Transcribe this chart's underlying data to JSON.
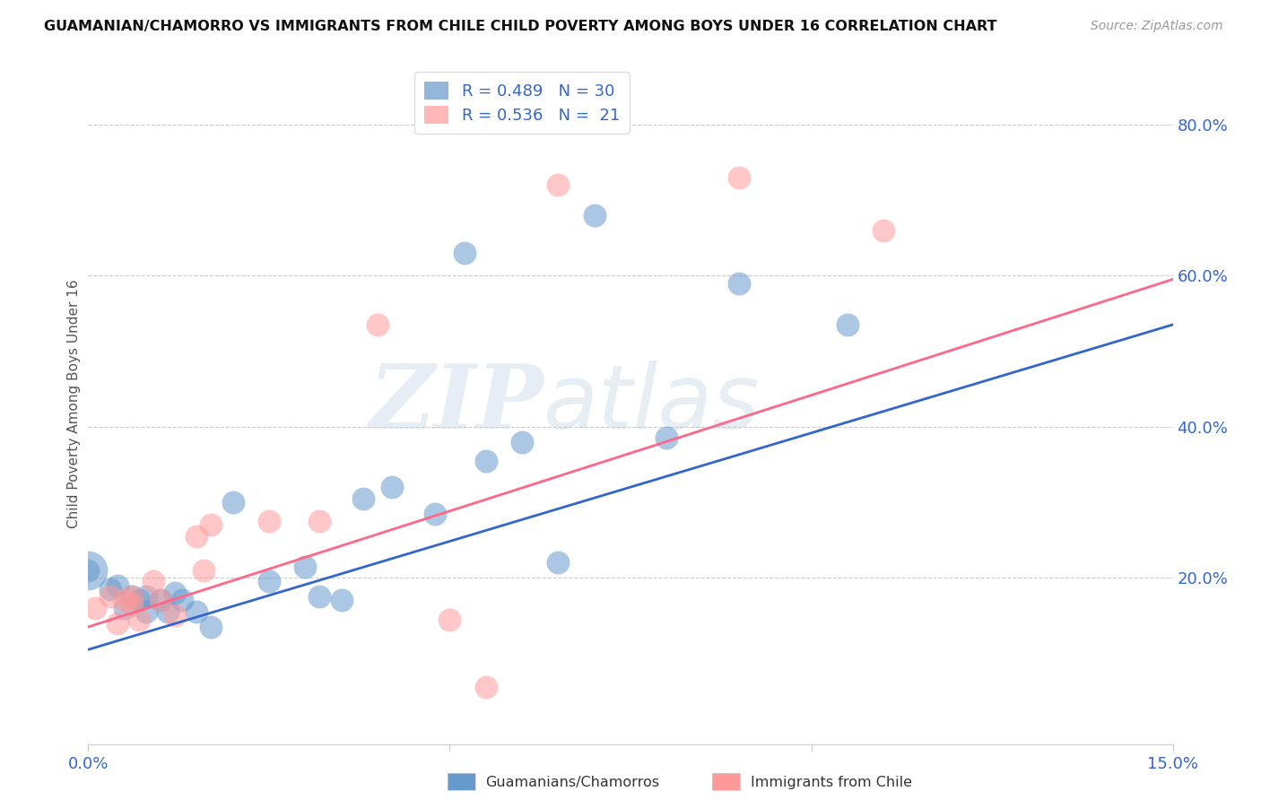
{
  "title": "GUAMANIAN/CHAMORRO VS IMMIGRANTS FROM CHILE CHILD POVERTY AMONG BOYS UNDER 16 CORRELATION CHART",
  "source": "Source: ZipAtlas.com",
  "xlim": [
    0.0,
    0.15
  ],
  "ylim": [
    -0.02,
    0.88
  ],
  "blue_R": 0.489,
  "blue_N": 30,
  "pink_R": 0.536,
  "pink_N": 21,
  "blue_color": "#6699CC",
  "pink_color": "#FF9999",
  "blue_line_color": "#3366CC",
  "pink_line_color": "#FF6688",
  "background_color": "#FFFFFF",
  "blue_scatter_x": [
    0.0,
    0.003,
    0.004,
    0.005,
    0.006,
    0.007,
    0.008,
    0.008,
    0.01,
    0.011,
    0.012,
    0.013,
    0.015,
    0.017,
    0.02,
    0.025,
    0.03,
    0.032,
    0.035,
    0.038,
    0.042,
    0.048,
    0.052,
    0.055,
    0.06,
    0.065,
    0.07,
    0.08,
    0.09,
    0.105
  ],
  "blue_scatter_y": [
    0.21,
    0.185,
    0.19,
    0.16,
    0.175,
    0.17,
    0.175,
    0.155,
    0.17,
    0.155,
    0.18,
    0.17,
    0.155,
    0.135,
    0.3,
    0.195,
    0.215,
    0.175,
    0.17,
    0.305,
    0.32,
    0.285,
    0.63,
    0.355,
    0.38,
    0.22,
    0.68,
    0.385,
    0.59,
    0.535
  ],
  "pink_scatter_x": [
    0.001,
    0.003,
    0.004,
    0.005,
    0.006,
    0.006,
    0.007,
    0.009,
    0.01,
    0.012,
    0.015,
    0.016,
    0.017,
    0.025,
    0.032,
    0.04,
    0.05,
    0.055,
    0.065,
    0.09,
    0.11
  ],
  "pink_scatter_y": [
    0.16,
    0.175,
    0.14,
    0.17,
    0.175,
    0.165,
    0.145,
    0.195,
    0.17,
    0.15,
    0.255,
    0.21,
    0.27,
    0.275,
    0.275,
    0.535,
    0.145,
    0.055,
    0.72,
    0.73,
    0.66
  ],
  "blue_line_x0": 0.0,
  "blue_line_y0": 0.105,
  "blue_line_x1": 0.15,
  "blue_line_y1": 0.535,
  "pink_line_x0": 0.0,
  "pink_line_y0": 0.135,
  "pink_line_x1": 0.15,
  "pink_line_y1": 0.595,
  "legend_label_blue": "Guamanians/Chamorros",
  "legend_label_pink": "Immigrants from Chile",
  "ylabel": "Child Poverty Among Boys Under 16",
  "watermark_zip": "ZIP",
  "watermark_atlas": "atlas",
  "ytick_vals": [
    0.0,
    0.2,
    0.4,
    0.6,
    0.8
  ],
  "ytick_labels": [
    "",
    "20.0%",
    "40.0%",
    "60.0%",
    "80.0%"
  ],
  "xtick_vals": [
    0.0,
    0.05,
    0.1,
    0.15
  ],
  "xtick_labels": [
    "0.0%",
    "",
    "",
    "15.0%"
  ]
}
